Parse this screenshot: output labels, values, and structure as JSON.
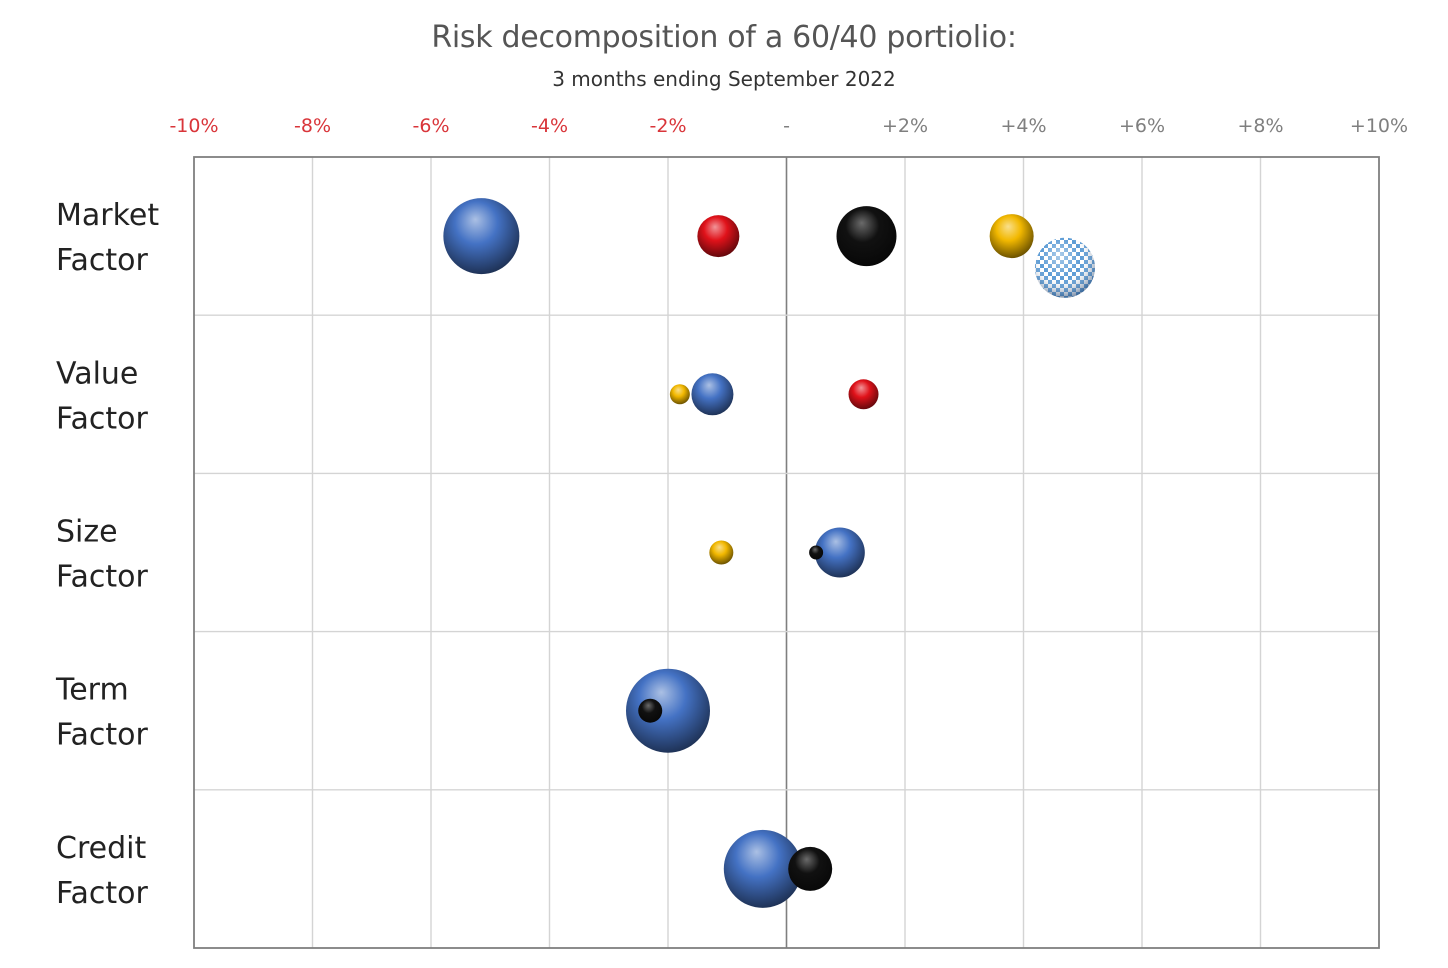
{
  "title": "Risk decomposition of a 60/40 portiolio:",
  "subtitle": "3 months ending September 2022",
  "chart_data": {
    "type": "scatter",
    "x_axis": {
      "range": [
        -10,
        10
      ],
      "ticks": [
        -10,
        -8,
        -6,
        -4,
        -2,
        0,
        2,
        4,
        6,
        8,
        10
      ],
      "tick_labels": [
        "-10%",
        "-8%",
        "-6%",
        "-4%",
        "-2%",
        "-",
        "+2%",
        "+4%",
        "+6%",
        "+8%",
        "+10%"
      ],
      "negative_label_color": "#d9353a",
      "positive_label_color": "#7f7f7f",
      "position": "top"
    },
    "rows": [
      {
        "line1": "Market",
        "line2": "Factor"
      },
      {
        "line1": "Value",
        "line2": "Factor"
      },
      {
        "line1": "Size",
        "line2": "Factor"
      },
      {
        "line1": "Term",
        "line2": "Factor"
      },
      {
        "line1": "Credit",
        "line2": "Factor"
      }
    ],
    "grid": true,
    "bubbles": [
      {
        "row": 0,
        "x": -5.15,
        "offset": 0,
        "size": 38,
        "color": "blue"
      },
      {
        "row": 0,
        "x": -1.15,
        "offset": 0,
        "size": 21,
        "color": "red"
      },
      {
        "row": 0,
        "x": 1.35,
        "offset": 0,
        "size": 30,
        "color": "black"
      },
      {
        "row": 0,
        "x": 3.8,
        "offset": 0,
        "size": 22,
        "color": "gold"
      },
      {
        "row": 0,
        "x": 4.7,
        "offset": 0.2,
        "size": 30,
        "color": "checker"
      },
      {
        "row": 1,
        "x": -1.8,
        "offset": 0,
        "size": 10,
        "color": "gold"
      },
      {
        "row": 1,
        "x": -1.25,
        "offset": 0,
        "size": 21,
        "color": "blue"
      },
      {
        "row": 1,
        "x": 1.3,
        "offset": 0,
        "size": 15,
        "color": "red"
      },
      {
        "row": 2,
        "x": -1.1,
        "offset": 0,
        "size": 12,
        "color": "gold"
      },
      {
        "row": 2,
        "x": 0.9,
        "offset": 0,
        "size": 25,
        "color": "blue"
      },
      {
        "row": 2,
        "x": 0.5,
        "offset": 0,
        "size": 7,
        "color": "black"
      },
      {
        "row": 3,
        "x": -2.0,
        "offset": 0,
        "size": 42,
        "color": "blue"
      },
      {
        "row": 3,
        "x": -2.3,
        "offset": 0,
        "size": 12,
        "color": "black"
      },
      {
        "row": 4,
        "x": -0.4,
        "offset": 0,
        "size": 39,
        "color": "blue"
      },
      {
        "row": 4,
        "x": 0.4,
        "offset": 0,
        "size": 22,
        "color": "black"
      }
    ],
    "colors": {
      "blue": "#4472c4",
      "red": "#e0121a",
      "black": "#111111",
      "gold": "#f2b800",
      "checker": "#5b9bd5",
      "grid": "#d4d4d4",
      "frame": "#7f7f7f"
    }
  }
}
